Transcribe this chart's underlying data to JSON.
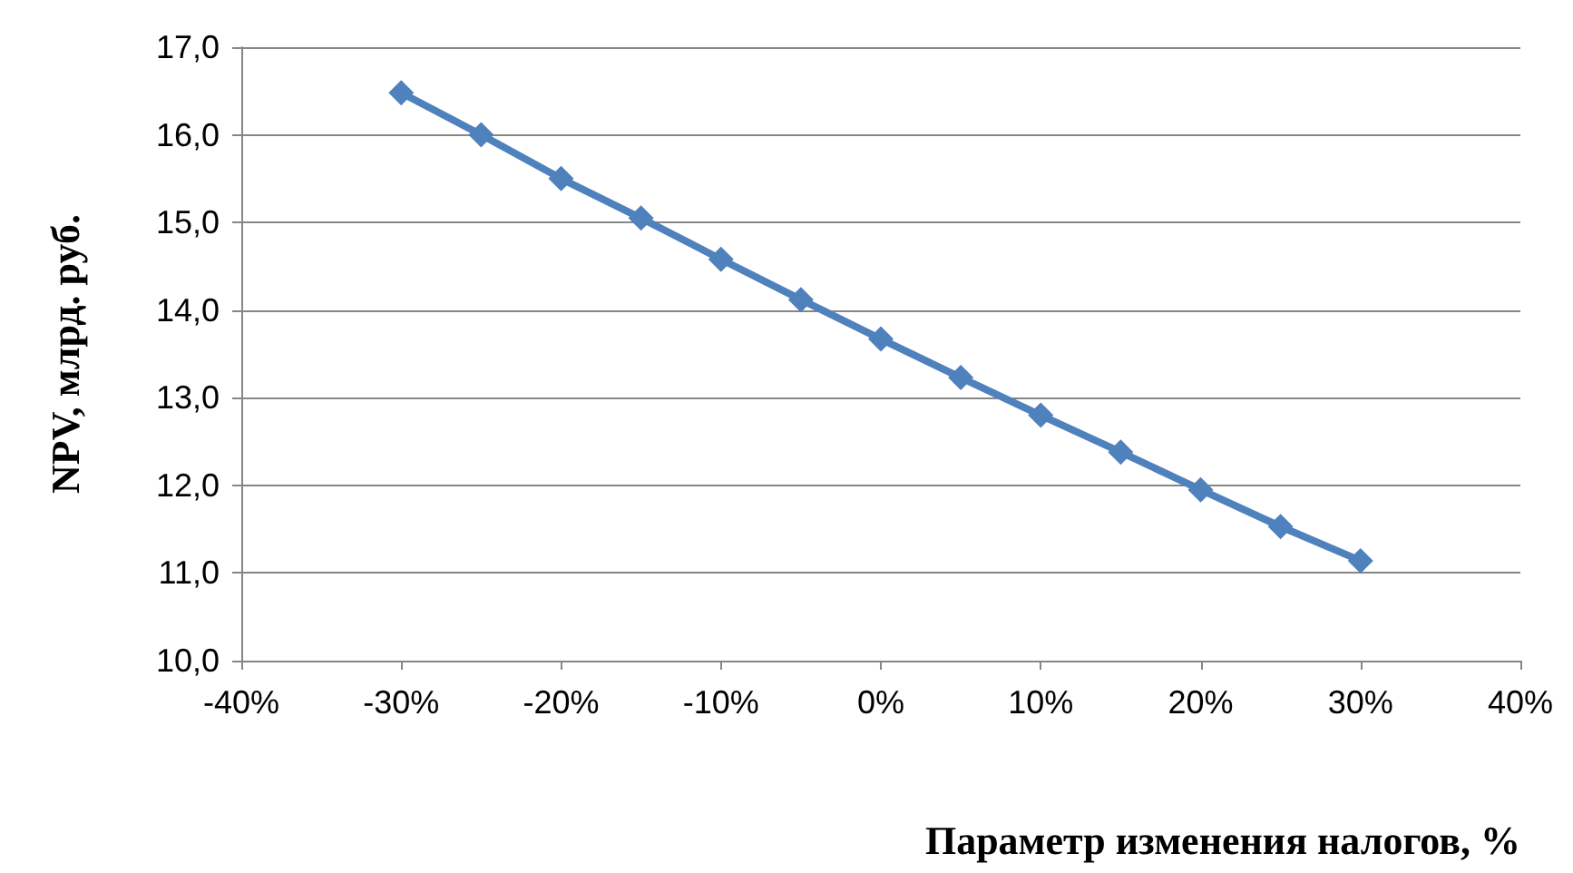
{
  "chart_data": {
    "type": "line",
    "xlabel": "Параметр изменения налогов, %",
    "ylabel": "NPV, млрд. руб.",
    "x": [
      -30,
      -25,
      -20,
      -15,
      -10,
      -5,
      0,
      5,
      10,
      15,
      20,
      25,
      30
    ],
    "series": [
      {
        "color": "#4f81bd",
        "values": [
          16.48,
          16.0,
          15.5,
          15.05,
          14.58,
          14.12,
          13.67,
          13.23,
          12.8,
          12.38,
          11.95,
          11.53,
          11.14
        ]
      }
    ],
    "xlim": [
      -40,
      40
    ],
    "xticks": [
      {
        "value": -40,
        "label": "-40%"
      },
      {
        "value": -30,
        "label": "-30%"
      },
      {
        "value": -20,
        "label": "-20%"
      },
      {
        "value": -10,
        "label": "-10%"
      },
      {
        "value": 0,
        "label": "0%"
      },
      {
        "value": 10,
        "label": "10%"
      },
      {
        "value": 20,
        "label": "20%"
      },
      {
        "value": 30,
        "label": "30%"
      },
      {
        "value": 40,
        "label": "40%"
      }
    ],
    "ylim": [
      10,
      17
    ],
    "yticks": [
      {
        "value": 10,
        "label": "10,0"
      },
      {
        "value": 11,
        "label": "11,0"
      },
      {
        "value": 12,
        "label": "12,0"
      },
      {
        "value": 13,
        "label": "13,0"
      },
      {
        "value": 14,
        "label": "14,0"
      },
      {
        "value": 15,
        "label": "15,0"
      },
      {
        "value": 16,
        "label": "16,0"
      },
      {
        "value": 17,
        "label": "17,0"
      }
    ],
    "grid": "y",
    "marker": "diamond",
    "line_style": "solid"
  }
}
